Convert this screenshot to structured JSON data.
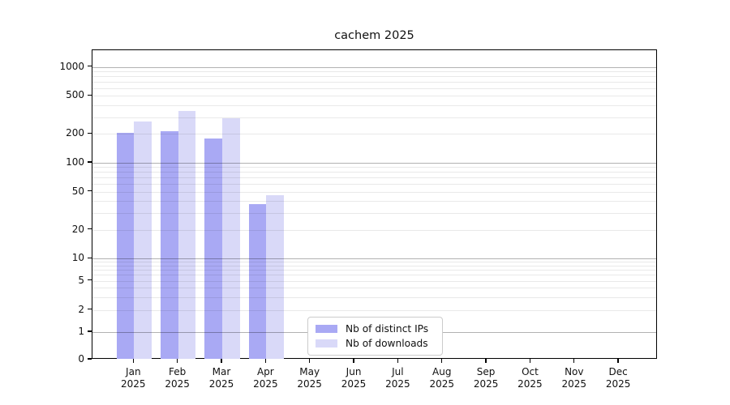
{
  "title": "cachem 2025",
  "chart_data": {
    "type": "bar",
    "categories": [
      "Jan",
      "Feb",
      "Mar",
      "Apr",
      "May",
      "Jun",
      "Jul",
      "Aug",
      "Sep",
      "Oct",
      "Nov",
      "Dec"
    ],
    "year_label": "2025",
    "series": [
      {
        "name": "Nb of distinct IPs",
        "color": "#a9a9f4",
        "values": [
          205,
          212,
          181,
          37,
          0,
          0,
          0,
          0,
          0,
          0,
          0,
          0
        ]
      },
      {
        "name": "Nb of downloads",
        "color": "#d9d9f8",
        "values": [
          272,
          350,
          290,
          46,
          0,
          0,
          0,
          0,
          0,
          0,
          0,
          0
        ]
      }
    ],
    "y_ticks": [
      0,
      1,
      2,
      5,
      10,
      20,
      50,
      100,
      200,
      500,
      1000
    ],
    "scale": "symlog",
    "ylim": [
      0,
      1500
    ],
    "grid": true,
    "legend_position": "lower center",
    "colors": {
      "major_grid": "#b3b3b3",
      "minor_grid": "#e9e9e9",
      "axis": "#000000",
      "background": "#ffffff"
    }
  }
}
